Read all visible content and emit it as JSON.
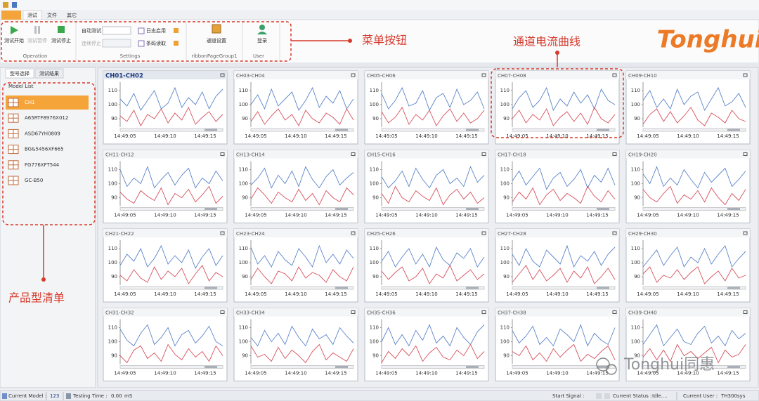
{
  "window": {
    "tabs": [
      "测试",
      "文件",
      "其它"
    ]
  },
  "ribbon": {
    "groups": [
      {
        "name": "Operation",
        "buttons": [
          "测试开始",
          "测试暂停",
          "测试停止"
        ]
      },
      {
        "name": "Settings",
        "buttons": [
          "自动测试",
          "连续停止",
          "日志启用",
          "条码读取"
        ]
      },
      {
        "name": "ribbonPageGroup1",
        "buttons": [
          "通道设置"
        ]
      },
      {
        "name": "User",
        "buttons": [
          "登录"
        ]
      }
    ]
  },
  "logo": "Tonghui",
  "annotations": {
    "menu": "菜单按钮",
    "curves": "通道电流曲线",
    "models": "产品型清单"
  },
  "left_panel": {
    "tabs": [
      "型号选择",
      "测试结果"
    ],
    "title": "Model List",
    "models": [
      "CH1",
      "A65RTF8976X012",
      "ASD67YH0809",
      "BG&5456XF665",
      "FG776XFT544",
      "GC-B50"
    ]
  },
  "charts": {
    "ylim": [
      84,
      116
    ],
    "yticks": [
      90,
      100,
      110
    ],
    "xticks": [
      "14:49:05",
      "14:49:10",
      "14:49:15"
    ],
    "colors": [
      "#5b84c9",
      "#d6505c"
    ],
    "panels": [
      {
        "title": "CH01-CH02",
        "series": [
          [
            104,
            99,
            108,
            96,
            103,
            110,
            97,
            101,
            112,
            98,
            105,
            100,
            109,
            97,
            106,
            111
          ],
          [
            92,
            88,
            96,
            85,
            93,
            90,
            97,
            87,
            94,
            89,
            98,
            86,
            91,
            95,
            88,
            93
          ]
        ]
      },
      {
        "title": "CH03-CH04",
        "series": [
          [
            100,
            107,
            97,
            111,
            99,
            104,
            109,
            96,
            103,
            112,
            98,
            106,
            101,
            110,
            97,
            104
          ],
          [
            88,
            95,
            86,
            92,
            97,
            89,
            93,
            85,
            96,
            90,
            87,
            94,
            91,
            86,
            97,
            89
          ]
        ]
      },
      {
        "title": "CH05-CH06",
        "series": [
          [
            108,
            97,
            103,
            112,
            99,
            101,
            110,
            96,
            105,
            108,
            98,
            111,
            100,
            103,
            109,
            97
          ],
          [
            95,
            87,
            91,
            98,
            86,
            93,
            89,
            96,
            85,
            92,
            97,
            88,
            94,
            87,
            90,
            96
          ]
        ]
      },
      {
        "title": "CH07-CH08",
        "series": [
          [
            97,
            105,
            110,
            98,
            103,
            112,
            96,
            104,
            99,
            109,
            101,
            107,
            97,
            111,
            103,
            100
          ],
          [
            90,
            96,
            87,
            93,
            89,
            97,
            85,
            91,
            95,
            88,
            94,
            86,
            98,
            90,
            87,
            93
          ]
        ]
      },
      {
        "title": "CH09-CH10",
        "series": [
          [
            103,
            110,
            98,
            104,
            97,
            111,
            100,
            106,
            109,
            96,
            104,
            112,
            99,
            102,
            108,
            98
          ],
          [
            86,
            93,
            97,
            88,
            95,
            87,
            92,
            98,
            89,
            85,
            94,
            91,
            87,
            96,
            90,
            88
          ]
        ]
      },
      {
        "title": "CH11-CH12",
        "series": [
          [
            110,
            98,
            104,
            100,
            112,
            97,
            103,
            108,
            99,
            106,
            111,
            97,
            104,
            100,
            109,
            102
          ],
          [
            94,
            89,
            86,
            95,
            91,
            88,
            97,
            85,
            93,
            90,
            96,
            87,
            92,
            98,
            86,
            91
          ]
        ]
      },
      {
        "title": "CH13-CH14",
        "series": [
          [
            99,
            104,
            111,
            97,
            106,
            100,
            109,
            98,
            112,
            103,
            97,
            105,
            110,
            99,
            104,
            108
          ],
          [
            89,
            97,
            92,
            86,
            94,
            90,
            87,
            96,
            88,
            93,
            85,
            95,
            90,
            87,
            97,
            92
          ]
        ]
      },
      {
        "title": "CH15-CH16",
        "series": [
          [
            105,
            97,
            102,
            109,
            98,
            111,
            103,
            97,
            106,
            110,
            100,
            104,
            98,
            112,
            101,
            106
          ],
          [
            93,
            86,
            98,
            90,
            87,
            95,
            91,
            88,
            97,
            85,
            92,
            96,
            89,
            94,
            86,
            90
          ]
        ]
      },
      {
        "title": "CH17-CH18",
        "series": [
          [
            102,
            109,
            99,
            105,
            111,
            96,
            104,
            108,
            98,
            103,
            110,
            97,
            106,
            101,
            111,
            99
          ],
          [
            87,
            94,
            89,
            97,
            85,
            92,
            96,
            88,
            93,
            90,
            86,
            98,
            91,
            87,
            95,
            89
          ]
        ]
      },
      {
        "title": "CH19-CH20",
        "series": [
          [
            107,
            100,
            112,
            98,
            104,
            99,
            110,
            103,
            97,
            108,
            101,
            106,
            111,
            98,
            103,
            109
          ],
          [
            96,
            90,
            87,
            93,
            98,
            86,
            92,
            89,
            95,
            87,
            97,
            90,
            85,
            93,
            88,
            96
          ]
        ]
      },
      {
        "title": "CH21-CH22",
        "series": [
          [
            98,
            106,
            101,
            110,
            97,
            103,
            112,
            99,
            105,
            100,
            109,
            96,
            104,
            110,
            98,
            105
          ],
          [
            91,
            87,
            95,
            89,
            86,
            97,
            88,
            94,
            90,
            96,
            85,
            92,
            98,
            87,
            93,
            90
          ]
        ]
      },
      {
        "title": "CH23-CH24",
        "series": [
          [
            111,
            99,
            105,
            97,
            108,
            102,
            98,
            110,
            104,
            97,
            112,
            100,
            106,
            99,
            109,
            103
          ],
          [
            88,
            96,
            90,
            85,
            94,
            92,
            87,
            97,
            89,
            93,
            91,
            86,
            95,
            90,
            87,
            97
          ]
        ]
      },
      {
        "title": "CH25-CH26",
        "series": [
          [
            101,
            108,
            97,
            104,
            110,
            99,
            106,
            97,
            111,
            102,
            98,
            107,
            103,
            110,
            97,
            104
          ],
          [
            94,
            88,
            93,
            97,
            87,
            90,
            96,
            85,
            92,
            89,
            98,
            87,
            91,
            95,
            88,
            92
          ]
        ]
      },
      {
        "title": "CH27-CH28",
        "series": [
          [
            106,
            98,
            110,
            101,
            97,
            109,
            104,
            99,
            112,
            97,
            105,
            101,
            108,
            98,
            106,
            111
          ],
          [
            86,
            92,
            98,
            88,
            95,
            87,
            91,
            96,
            86,
            94,
            89,
            97,
            85,
            90,
            96,
            88
          ]
        ]
      },
      {
        "title": "CH29-CH30",
        "series": [
          [
            97,
            103,
            109,
            98,
            105,
            111,
            97,
            104,
            100,
            110,
            99,
            106,
            112,
            97,
            103,
            108
          ],
          [
            92,
            97,
            86,
            91,
            89,
            95,
            88,
            93,
            97,
            85,
            90,
            94,
            87,
            96,
            89,
            91
          ]
        ]
      },
      {
        "title": "CH31-CH32",
        "series": [
          [
            109,
            101,
            97,
            106,
            112,
            98,
            103,
            110,
            97,
            105,
            108,
            99,
            104,
            111,
            100,
            97
          ],
          [
            90,
            85,
            94,
            97,
            88,
            92,
            86,
            98,
            91,
            87,
            95,
            89,
            93,
            86,
            97,
            90
          ]
        ]
      },
      {
        "title": "CH33-CH34",
        "series": [
          [
            103,
            97,
            108,
            100,
            106,
            98,
            111,
            103,
            97,
            109,
            102,
            105,
            98,
            110,
            104,
            99
          ],
          [
            97,
            89,
            91,
            86,
            96,
            88,
            94,
            90,
            85,
            93,
            98,
            87,
            92,
            89,
            86,
            95
          ]
        ]
      },
      {
        "title": "CH35-CH36",
        "series": [
          [
            100,
            110,
            98,
            105,
            97,
            108,
            101,
            112,
            99,
            104,
            97,
            110,
            103,
            98,
            107,
            112
          ],
          [
            85,
            93,
            88,
            95,
            90,
            97,
            86,
            92,
            96,
            89,
            87,
            94,
            90,
            98,
            88,
            93
          ]
        ]
      },
      {
        "title": "CH37-CH38",
        "series": [
          [
            108,
            99,
            104,
            111,
            98,
            103,
            97,
            109,
            105,
            100,
            112,
            97,
            106,
            101,
            98,
            110
          ],
          [
            93,
            90,
            97,
            87,
            92,
            86,
            95,
            89,
            94,
            98,
            86,
            91,
            88,
            93,
            97,
            87
          ]
        ]
      },
      {
        "title": "CH39-CH40",
        "series": [
          [
            98,
            105,
            112,
            97,
            103,
            109,
            100,
            98,
            106,
            111,
            99,
            104,
            97,
            108,
            102,
            106
          ],
          [
            89,
            95,
            87,
            94,
            86,
            98,
            90,
            93,
            88,
            92,
            96,
            85,
            94,
            89,
            91,
            98
          ]
        ]
      }
    ]
  },
  "status": {
    "model_label": "Current Model :",
    "model": "123",
    "time_label": "Testing Time :",
    "time": "0.00",
    "time_unit": "mS",
    "signal_label": "Start Signal :",
    "state_label": "Current Status :",
    "state": "Idle....",
    "user_label": "Current User :",
    "user": "TH300sys"
  },
  "watermark": "Tonghui同惠"
}
